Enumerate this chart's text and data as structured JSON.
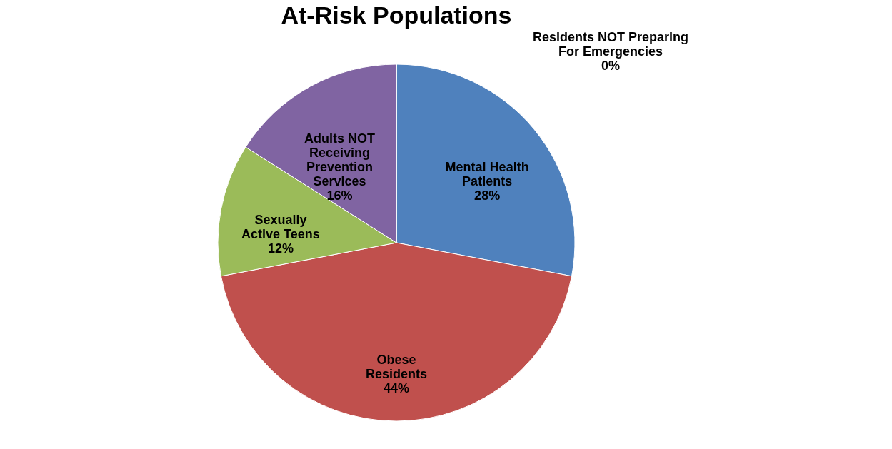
{
  "chart_data": {
    "type": "pie",
    "title": "At-Risk Populations",
    "categories": [
      "Mental Health Patients",
      "Obese Residents",
      "Sexually Active Teens",
      "Adults NOT Receiving Prevention Services",
      "Residents NOT Preparing For Emergencies"
    ],
    "values": [
      28,
      44,
      12,
      16,
      0
    ],
    "value_labels": [
      "28%",
      "44%",
      "12%",
      "16%",
      "0%"
    ],
    "colors": [
      "#4f81bd",
      "#c0504d",
      "#9bbb59",
      "#8064a2",
      "#4bacc6"
    ],
    "legend": false
  }
}
